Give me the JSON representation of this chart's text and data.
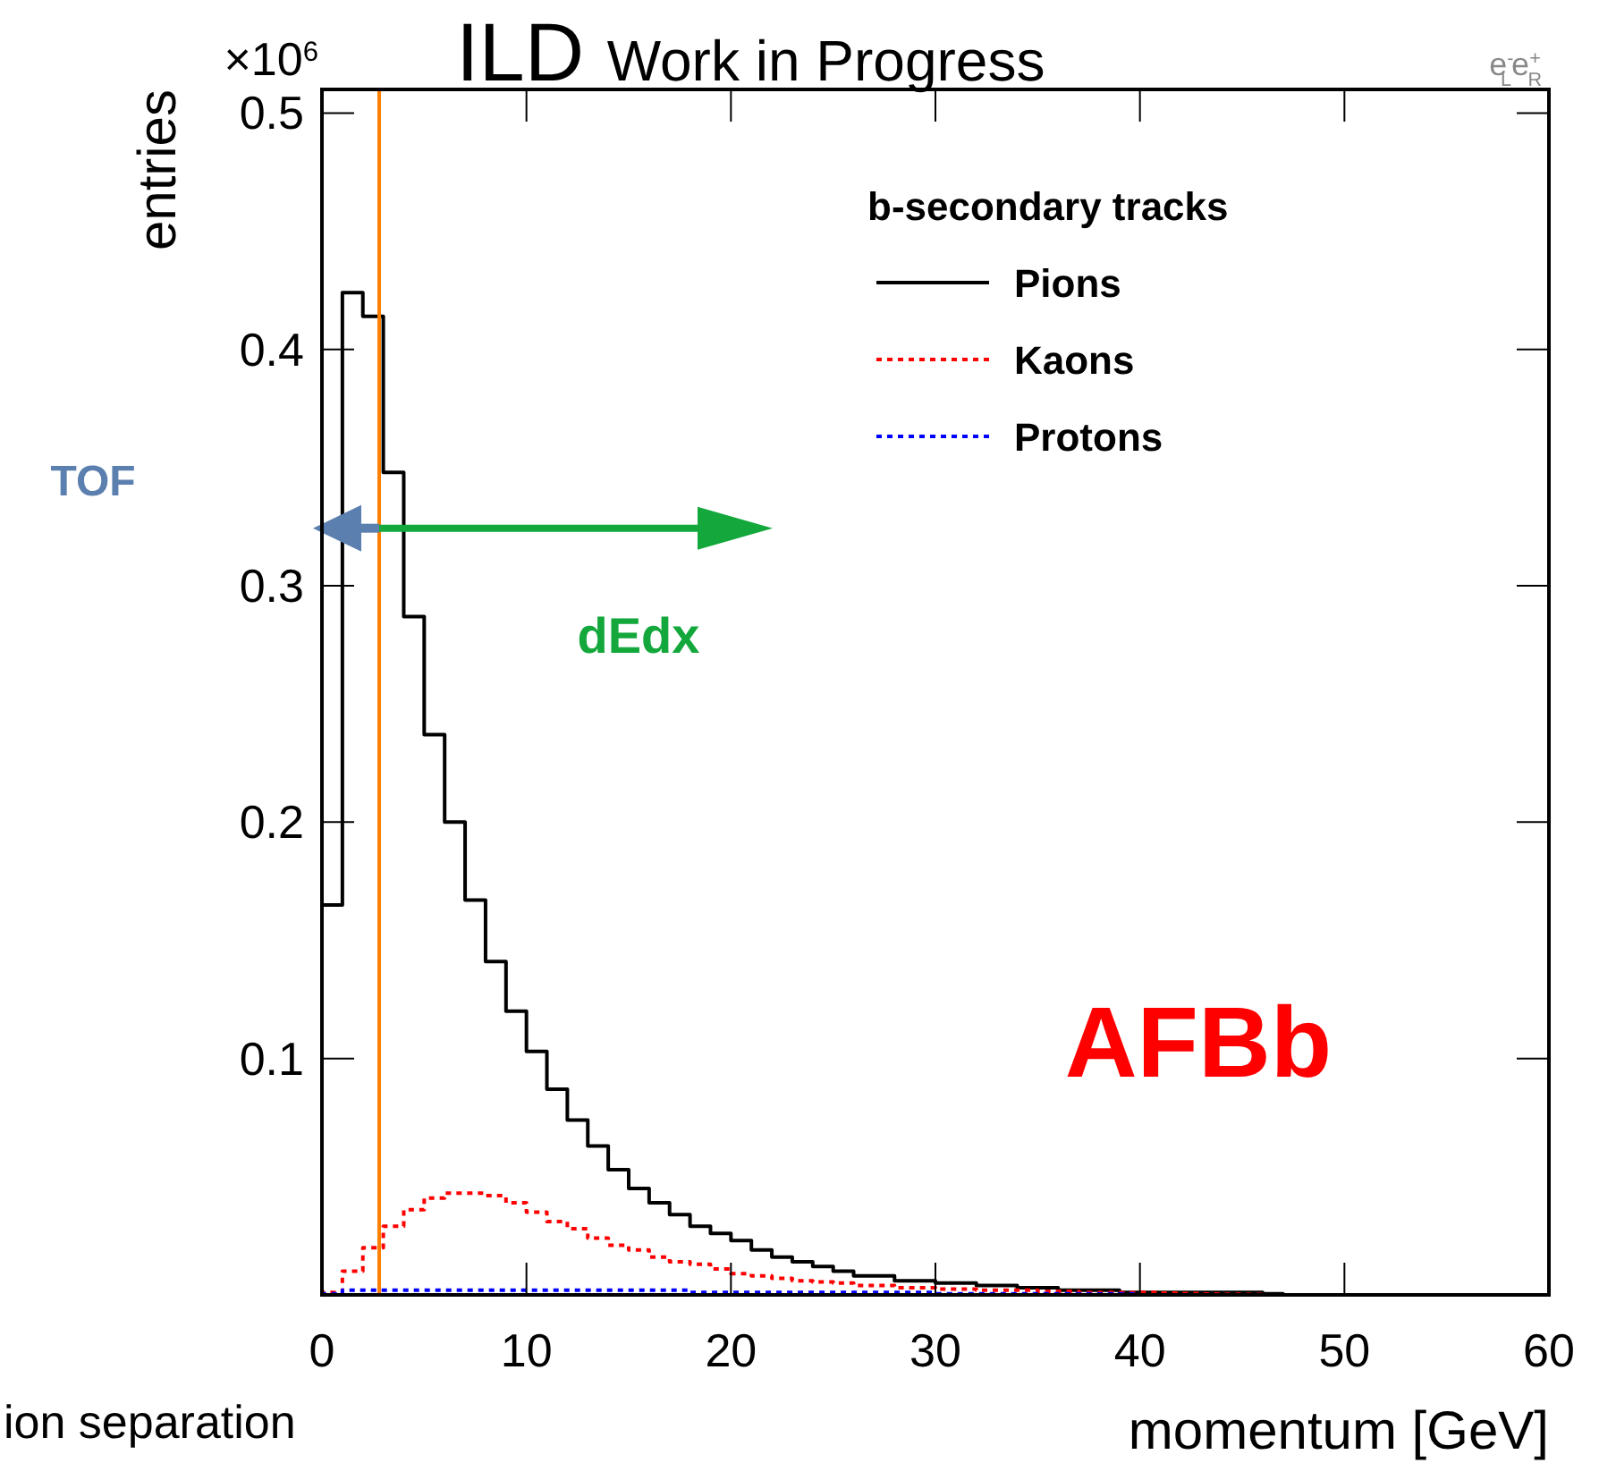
{
  "chart_data": {
    "type": "histogram",
    "title": "ILD Work in Progress",
    "xlabel": "momentum [GeV]",
    "ylabel": "entries",
    "legend_title": "b-secondary tracks",
    "bins": [
      0,
      1,
      2,
      3,
      4,
      5,
      6,
      7,
      8,
      9,
      10,
      11,
      12,
      13,
      14,
      15,
      16,
      17,
      18,
      19,
      20,
      21,
      22,
      23,
      24,
      25,
      26,
      27,
      28,
      29,
      30,
      31,
      32,
      33,
      34,
      35,
      36,
      37,
      38,
      39,
      40,
      41,
      42,
      43,
      44,
      45,
      46,
      47,
      48,
      49,
      50,
      51,
      52,
      53,
      54,
      55,
      56,
      57,
      58,
      59,
      60
    ],
    "series": [
      {
        "name": "Pions",
        "color": "#000000",
        "line_style": "solid",
        "values": [
          0.165,
          0.424,
          0.414,
          0.348,
          0.287,
          0.237,
          0.2,
          0.167,
          0.141,
          0.12,
          0.103,
          0.087,
          0.074,
          0.063,
          0.053,
          0.045,
          0.039,
          0.034,
          0.029,
          0.026,
          0.023,
          0.019,
          0.016,
          0.014,
          0.012,
          0.01,
          0.008,
          0.008,
          0.006,
          0.006,
          0.005,
          0.005,
          0.004,
          0.004,
          0.003,
          0.003,
          0.002,
          0.002,
          0.002,
          0.001,
          0.001,
          0.001,
          0.001,
          0.001,
          0.001,
          0.001,
          0.0005,
          0,
          0,
          0,
          0,
          0,
          0,
          0,
          0,
          0,
          0,
          0,
          0,
          0
        ]
      },
      {
        "name": "Kaons",
        "color": "#ff0000",
        "line_style": "dotted",
        "values": [
          0.001,
          0.01,
          0.02,
          0.029,
          0.036,
          0.041,
          0.043,
          0.043,
          0.042,
          0.039,
          0.035,
          0.031,
          0.028,
          0.024,
          0.021,
          0.019,
          0.016,
          0.014,
          0.013,
          0.011,
          0.009,
          0.008,
          0.007,
          0.006,
          0.0055,
          0.005,
          0.004,
          0.004,
          0.003,
          0.003,
          0.0025,
          0.0025,
          0.002,
          0.002,
          0.002,
          0.0015,
          0.0015,
          0.001,
          0.001,
          0.001,
          0.001,
          0.0008,
          0.0006,
          0.0004,
          0.0003,
          0.0002,
          0,
          0,
          0,
          0,
          0,
          0,
          0,
          0,
          0,
          0,
          0,
          0,
          0,
          0
        ]
      },
      {
        "name": "Protons",
        "color": "#0000ff",
        "line_style": "dotted",
        "values": [
          0.0005,
          0.002,
          0.002,
          0.002,
          0.002,
          0.002,
          0.002,
          0.002,
          0.002,
          0.002,
          0.002,
          0.002,
          0.002,
          0.002,
          0.002,
          0.002,
          0.002,
          0.002,
          0.001,
          0.001,
          0.001,
          0.001,
          0.001,
          0.001,
          0.001,
          0.001,
          0.001,
          0.001,
          0.001,
          0.001,
          0.0005,
          0.0005,
          0.0005,
          0.0005,
          0.0005,
          0.0005,
          0.0005,
          0.0005,
          0.0005,
          0.0005,
          0,
          0,
          0,
          0,
          0,
          0,
          0,
          0,
          0,
          0,
          0,
          0,
          0,
          0,
          0,
          0,
          0,
          0,
          0,
          0
        ]
      }
    ],
    "xlim": [
      0,
      60
    ],
    "xticks": [
      0,
      10,
      20,
      30,
      40,
      50,
      60
    ],
    "ylim": [
      0,
      0.51
    ],
    "yticks": [
      {
        "value": 0,
        "label": null
      },
      0.1,
      0.2,
      0.3,
      0.4,
      0.5
    ],
    "ref_lines": [
      {
        "axis": "x",
        "value": 2.8,
        "color": "#ff8000"
      }
    ],
    "annotations": [
      "×10$^{6}$",
      "TOF",
      "dEdx",
      "AFBb",
      "e$^{-}$$_{L}$e$^{+}$$_{R}$",
      "ion separation"
    ],
    "legend": "top right",
    "grid": false
  }
}
